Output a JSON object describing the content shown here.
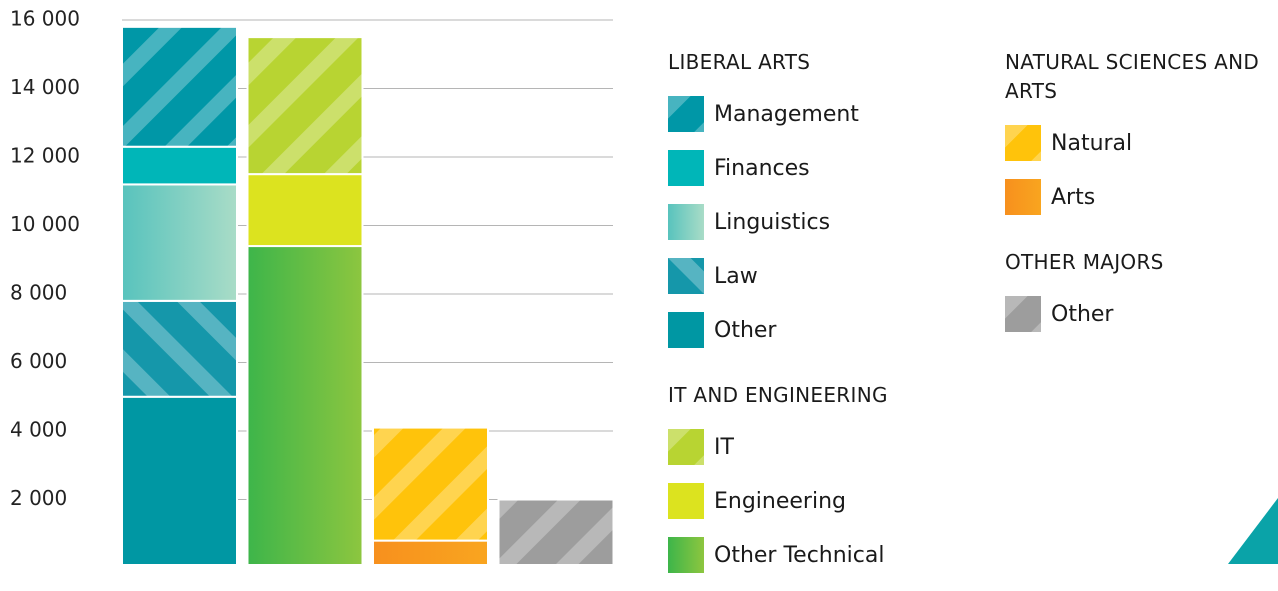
{
  "chart_data": {
    "type": "bar",
    "stacked": true,
    "ylim": [
      0,
      16000
    ],
    "yticks": [
      {
        "value": 2000,
        "label": "2 000"
      },
      {
        "value": 4000,
        "label": "4 000"
      },
      {
        "value": 6000,
        "label": "6 000"
      },
      {
        "value": 8000,
        "label": "8 000"
      },
      {
        "value": 10000,
        "label": "10 000"
      },
      {
        "value": 12000,
        "label": "12 000"
      },
      {
        "value": 14000,
        "label": "14 000"
      },
      {
        "value": 16000,
        "label": "16 000"
      }
    ],
    "grid": true,
    "groups": [
      {
        "name": "LIBERAL ARTS",
        "segments": [
          {
            "name": "Management",
            "value": 3500,
            "color": "#0097a7",
            "pattern": "stripes"
          },
          {
            "name": "Finances",
            "value": 1100,
            "color": "#00b6b8",
            "pattern": "solid"
          },
          {
            "name": "Linguistics",
            "value": 3400,
            "color": "#58c3bd",
            "color2": "#a9dcc7",
            "pattern": "gradient"
          },
          {
            "name": "Law",
            "value": 2800,
            "color": "#1597aa",
            "pattern": "stripes-reverse"
          },
          {
            "name": "Other",
            "value": 5000,
            "color": "#0097a3",
            "pattern": "solid"
          }
        ]
      },
      {
        "name": "IT AND ENGINEERING",
        "segments": [
          {
            "name": "IT",
            "value": 4000,
            "color": "#b8d432",
            "pattern": "stripes"
          },
          {
            "name": "Engineering",
            "value": 2100,
            "color": "#dce31f",
            "pattern": "solid"
          },
          {
            "name": "Other Technical",
            "value": 9400,
            "color": "#3db54a",
            "color2": "#8dc63f",
            "pattern": "gradient"
          }
        ]
      },
      {
        "name": "NATURAL SCIENCES AND ARTS",
        "segments": [
          {
            "name": "Natural",
            "value": 3300,
            "color": "#ffc30b",
            "pattern": "stripes"
          },
          {
            "name": "Arts",
            "value": 800,
            "color": "#f7901e",
            "color2": "#f9a51f",
            "pattern": "gradient"
          }
        ]
      },
      {
        "name": "OTHER MAJORS",
        "segments": [
          {
            "name": "Other",
            "value": 2000,
            "color": "#9d9d9d",
            "pattern": "stripes"
          }
        ]
      }
    ]
  }
}
